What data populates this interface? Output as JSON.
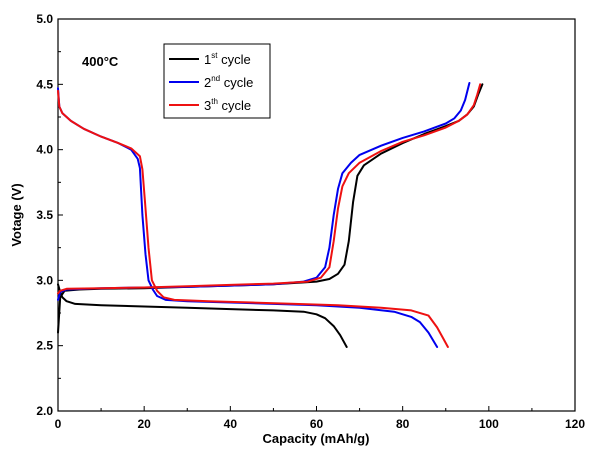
{
  "chart_data": {
    "type": "line",
    "title": "",
    "xlabel": "Capacity (mAh/g)",
    "ylabel": "Votage (V)",
    "xlim": [
      0,
      120
    ],
    "ylim": [
      2.0,
      5.0
    ],
    "x_ticks": [
      "0",
      "20",
      "40",
      "60",
      "80",
      "100",
      "120"
    ],
    "y_ticks": [
      "2.0",
      "2.5",
      "3.0",
      "3.5",
      "4.0",
      "4.5",
      "5.0"
    ],
    "annotation": "400°C",
    "grid": false,
    "legend_position": "top-center",
    "series": [
      {
        "name": "1st cycle",
        "legend_base": "1",
        "legend_sup": "st",
        "legend_rest": " cycle",
        "color": "#000000",
        "charge": [
          [
            0.0,
            2.6
          ],
          [
            0.5,
            2.87
          ],
          [
            1.5,
            2.92
          ],
          [
            5,
            2.93
          ],
          [
            10,
            2.935
          ],
          [
            20,
            2.94
          ],
          [
            30,
            2.95
          ],
          [
            40,
            2.96
          ],
          [
            50,
            2.97
          ],
          [
            60,
            2.99
          ],
          [
            63,
            3.01
          ],
          [
            65,
            3.05
          ],
          [
            66.5,
            3.12
          ],
          [
            67.5,
            3.3
          ],
          [
            68.5,
            3.6
          ],
          [
            69.5,
            3.8
          ],
          [
            71,
            3.88
          ],
          [
            75,
            3.97
          ],
          [
            80,
            4.05
          ],
          [
            85,
            4.12
          ],
          [
            90,
            4.18
          ],
          [
            93,
            4.22
          ],
          [
            95,
            4.27
          ],
          [
            96.5,
            4.33
          ],
          [
            97.5,
            4.42
          ],
          [
            98.5,
            4.5
          ]
        ],
        "discharge": [
          [
            0.0,
            2.97
          ],
          [
            0.5,
            2.91
          ],
          [
            1,
            2.87
          ],
          [
            2,
            2.84
          ],
          [
            4,
            2.82
          ],
          [
            10,
            2.81
          ],
          [
            20,
            2.8
          ],
          [
            30,
            2.79
          ],
          [
            40,
            2.78
          ],
          [
            50,
            2.77
          ],
          [
            57,
            2.76
          ],
          [
            60,
            2.74
          ],
          [
            62,
            2.71
          ],
          [
            64,
            2.65
          ],
          [
            65.5,
            2.58
          ],
          [
            67,
            2.49
          ]
        ]
      },
      {
        "name": "2nd cycle",
        "legend_base": "2",
        "legend_sup": "nd",
        "legend_rest": " cycle",
        "color": "#0000ee",
        "charge": [
          [
            0.0,
            2.85
          ],
          [
            0.5,
            2.91
          ],
          [
            2,
            2.93
          ],
          [
            10,
            2.94
          ],
          [
            20,
            2.945
          ],
          [
            30,
            2.95
          ],
          [
            40,
            2.96
          ],
          [
            50,
            2.97
          ],
          [
            57,
            2.99
          ],
          [
            60,
            3.02
          ],
          [
            62,
            3.1
          ],
          [
            63,
            3.25
          ],
          [
            64,
            3.5
          ],
          [
            65,
            3.7
          ],
          [
            66,
            3.82
          ],
          [
            68,
            3.9
          ],
          [
            70,
            3.96
          ],
          [
            75,
            4.03
          ],
          [
            80,
            4.09
          ],
          [
            85,
            4.14
          ],
          [
            90,
            4.2
          ],
          [
            92,
            4.24
          ],
          [
            93.5,
            4.3
          ],
          [
            94.5,
            4.38
          ],
          [
            95.5,
            4.51
          ]
        ],
        "discharge": [
          [
            0.0,
            4.47
          ],
          [
            0.3,
            4.33
          ],
          [
            1,
            4.28
          ],
          [
            3,
            4.22
          ],
          [
            6,
            4.16
          ],
          [
            10,
            4.1
          ],
          [
            14,
            4.05
          ],
          [
            17,
            4.0
          ],
          [
            18.5,
            3.93
          ],
          [
            19,
            3.86
          ],
          [
            19.6,
            3.5
          ],
          [
            20.3,
            3.2
          ],
          [
            21,
            3.0
          ],
          [
            22,
            2.93
          ],
          [
            23,
            2.88
          ],
          [
            25,
            2.85
          ],
          [
            30,
            2.84
          ],
          [
            40,
            2.83
          ],
          [
            50,
            2.82
          ],
          [
            60,
            2.81
          ],
          [
            70,
            2.79
          ],
          [
            78,
            2.76
          ],
          [
            82,
            2.72
          ],
          [
            84,
            2.68
          ],
          [
            86,
            2.6
          ],
          [
            88,
            2.49
          ]
        ]
      },
      {
        "name": "3th cycle",
        "legend_base": "3",
        "legend_sup": "th",
        "legend_rest": " cycle",
        "color": "#ee1111",
        "charge": [
          [
            0.0,
            2.9
          ],
          [
            0.5,
            2.92
          ],
          [
            2,
            2.935
          ],
          [
            10,
            2.94
          ],
          [
            20,
            2.945
          ],
          [
            30,
            2.955
          ],
          [
            40,
            2.965
          ],
          [
            50,
            2.975
          ],
          [
            58,
            2.99
          ],
          [
            61,
            3.02
          ],
          [
            63,
            3.1
          ],
          [
            64,
            3.3
          ],
          [
            65,
            3.55
          ],
          [
            66,
            3.72
          ],
          [
            67.5,
            3.82
          ],
          [
            70,
            3.9
          ],
          [
            75,
            3.99
          ],
          [
            80,
            4.06
          ],
          [
            85,
            4.11
          ],
          [
            90,
            4.17
          ],
          [
            93,
            4.22
          ],
          [
            95,
            4.27
          ],
          [
            96.5,
            4.34
          ],
          [
            97.3,
            4.42
          ],
          [
            98,
            4.5
          ]
        ],
        "discharge": [
          [
            0.0,
            4.45
          ],
          [
            0.3,
            4.33
          ],
          [
            1,
            4.28
          ],
          [
            3,
            4.22
          ],
          [
            6,
            4.16
          ],
          [
            10,
            4.1
          ],
          [
            14,
            4.05
          ],
          [
            17,
            4.01
          ],
          [
            19,
            3.95
          ],
          [
            19.6,
            3.85
          ],
          [
            20.2,
            3.6
          ],
          [
            21,
            3.25
          ],
          [
            21.8,
            3.0
          ],
          [
            23,
            2.92
          ],
          [
            24.5,
            2.87
          ],
          [
            27,
            2.85
          ],
          [
            35,
            2.84
          ],
          [
            45,
            2.83
          ],
          [
            55,
            2.82
          ],
          [
            65,
            2.81
          ],
          [
            75,
            2.79
          ],
          [
            82,
            2.77
          ],
          [
            86,
            2.73
          ],
          [
            88,
            2.64
          ],
          [
            89.5,
            2.55
          ],
          [
            90.5,
            2.49
          ]
        ]
      }
    ]
  }
}
